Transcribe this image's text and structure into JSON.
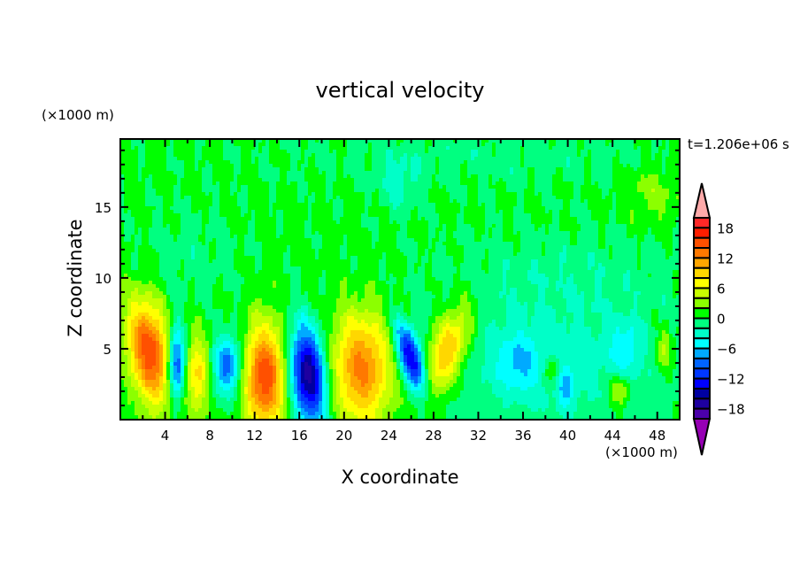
{
  "chart_data": {
    "type": "heatmap",
    "subtype": "filled-contour",
    "title": "vertical velocity",
    "xlabel": "X coordinate",
    "ylabel": "Z coordinate",
    "x_unit": "(×1000 m)",
    "y_unit": "(×1000 m)",
    "annotation": "t=1.206e+06 s",
    "xlim": [
      0,
      50
    ],
    "ylim": [
      0,
      19.8
    ],
    "x_ticks": [
      "4",
      "8",
      "12",
      "16",
      "20",
      "24",
      "28",
      "32",
      "36",
      "40",
      "44",
      "48"
    ],
    "y_ticks": [
      "5",
      "10",
      "15"
    ],
    "colorbar": {
      "levels": [
        20,
        18,
        16,
        14,
        12,
        10,
        8,
        6,
        4,
        2,
        0,
        -2,
        -4,
        -6,
        -8,
        -10,
        -12,
        -14,
        -16,
        -18,
        -20
      ],
      "labels": [
        "18",
        "12",
        "6",
        "0",
        "-6",
        "-12",
        "-18"
      ],
      "colors": [
        "#ff2828",
        "#ff1e00",
        "#ff5000",
        "#ff7800",
        "#ffa500",
        "#ffd700",
        "#ffff00",
        "#c8ff00",
        "#8cff00",
        "#00ff00",
        "#00ff80",
        "#00ffc8",
        "#00ffff",
        "#00aaff",
        "#0064ff",
        "#0037ff",
        "#0000ff",
        "#0000a0",
        "#1e00a0",
        "#4b00aa"
      ],
      "over_color": "#ffaaaa",
      "under_color": "#9600b4"
    },
    "features": [
      {
        "x": 2.6,
        "z": 4.8,
        "w": 15,
        "sx": 1.3,
        "sz": 2.6,
        "tilt": 0.15
      },
      {
        "x": 5.0,
        "z": 3.9,
        "w": -13,
        "sx": 0.55,
        "sz": 1.8,
        "tilt": 0
      },
      {
        "x": 6.9,
        "z": 3.2,
        "w": 8,
        "sx": 0.7,
        "sz": 1.9,
        "tilt": 0
      },
      {
        "x": 9.6,
        "z": 3.8,
        "w": -10,
        "sx": 0.9,
        "sz": 1.5,
        "tilt": 0
      },
      {
        "x": 12.9,
        "z": 3.0,
        "w": 15,
        "sx": 1.3,
        "sz": 2.6,
        "tilt": 0
      },
      {
        "x": 16.8,
        "z": 3.1,
        "w": -18,
        "sx": 1.1,
        "sz": 2.4,
        "tilt": 0.1
      },
      {
        "x": 21.6,
        "z": 3.6,
        "w": 12.5,
        "sx": 1.9,
        "sz": 2.8,
        "tilt": 0
      },
      {
        "x": 26.0,
        "z": 4.3,
        "w": -15,
        "sx": 0.75,
        "sz": 1.7,
        "tilt": 0.35
      },
      {
        "x": 29.2,
        "z": 4.8,
        "w": 11,
        "sx": 1.2,
        "sz": 2.2,
        "tilt": -0.35
      },
      {
        "x": 38.0,
        "z": 4.0,
        "w": -3.5,
        "sx": 8,
        "sz": 3.5,
        "tilt": 0
      },
      {
        "x": 35.6,
        "z": 4.0,
        "w": -4,
        "sx": 1.3,
        "sz": 1.4,
        "tilt": 0
      },
      {
        "x": 39.8,
        "z": 2.2,
        "w": -5,
        "sx": 0.5,
        "sz": 1.0,
        "tilt": 0
      },
      {
        "x": 45.2,
        "z": 5.0,
        "w": -4,
        "sx": 1.0,
        "sz": 1.4,
        "tilt": 0
      },
      {
        "x": 44.6,
        "z": 2.0,
        "w": 6,
        "sx": 0.6,
        "sz": 0.8,
        "tilt": 0
      },
      {
        "x": 48.7,
        "z": 5.0,
        "w": 5,
        "sx": 0.5,
        "sz": 1.0,
        "tilt": 0
      },
      {
        "x": 38.6,
        "z": 3.5,
        "w": 5,
        "sx": 0.5,
        "sz": 0.7,
        "tilt": 0
      },
      {
        "x": 6.0,
        "z": 11.5,
        "w": -1.6,
        "sx": 3.5,
        "sz": 2.5,
        "tilt": 0
      },
      {
        "x": 33.0,
        "z": 18.6,
        "w": -1.6,
        "sx": 14,
        "sz": 1.6,
        "tilt": 0
      },
      {
        "x": 25.0,
        "z": 16.5,
        "w": -3,
        "sx": 1.3,
        "sz": 1.5,
        "tilt": 0
      },
      {
        "x": 47.5,
        "z": 16.0,
        "w": 2.5,
        "sx": 1.8,
        "sz": 1.5,
        "tilt": 0
      },
      {
        "x": 40.0,
        "z": 10.5,
        "w": -1.6,
        "sx": 9,
        "sz": 2.5,
        "tilt": 0
      }
    ],
    "background_value": 0.6
  }
}
